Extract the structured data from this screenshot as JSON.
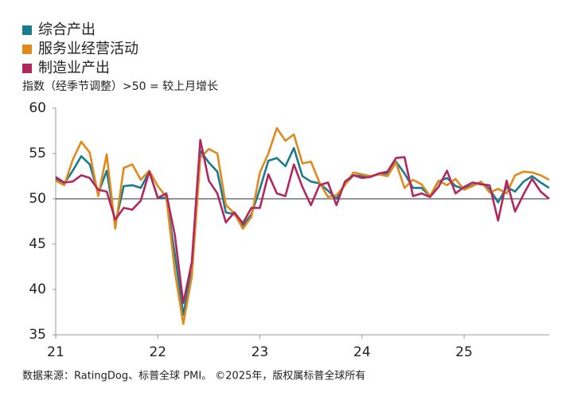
{
  "chart_data": {
    "type": "line",
    "subtitle": "指数（经季节调整）>50 = 较上月增长",
    "source": "数据来源：RatingDog、标普全球 PMI。 ©2025年，版权属标普全球所有",
    "categories": [
      "21",
      null,
      null,
      null,
      null,
      null,
      null,
      null,
      null,
      null,
      null,
      null,
      "22",
      null,
      null,
      null,
      null,
      null,
      null,
      null,
      null,
      null,
      null,
      null,
      "23",
      null,
      null,
      null,
      null,
      null,
      null,
      null,
      null,
      null,
      null,
      null,
      "24",
      null,
      null,
      null,
      null,
      null,
      null,
      null,
      null,
      null,
      null,
      null,
      "25",
      null,
      null,
      null,
      null,
      null,
      null,
      null,
      null,
      null,
      null
    ],
    "series": [
      {
        "name": "综合产出",
        "color": "#1b7b8e",
        "values": [
          52.2,
          51.7,
          53.1,
          54.7,
          53.8,
          50.6,
          53.1,
          47.2,
          51.4,
          51.5,
          51.2,
          53.0,
          50.1,
          50.1,
          43.9,
          37.2,
          42.2,
          55.3,
          54.0,
          53.0,
          48.5,
          48.3,
          47.0,
          48.3,
          51.1,
          54.2,
          54.5,
          53.6,
          55.6,
          52.5,
          51.9,
          51.7,
          50.9,
          50.0,
          51.6,
          52.6,
          52.5,
          52.5,
          52.7,
          52.8,
          54.1,
          52.8,
          51.2,
          51.2,
          50.3,
          51.9,
          52.3,
          51.4,
          51.1,
          51.5,
          51.8,
          51.1,
          49.6,
          51.3,
          50.8,
          51.9,
          52.5,
          51.8,
          51.2
        ]
      },
      {
        "name": "服务业经营活动",
        "color": "#e0891c",
        "values": [
          52.0,
          51.5,
          54.3,
          56.3,
          55.1,
          50.3,
          54.9,
          46.7,
          53.4,
          53.8,
          52.1,
          53.1,
          51.4,
          50.2,
          42.0,
          36.2,
          41.4,
          54.5,
          55.5,
          55.0,
          49.3,
          48.4,
          46.7,
          48.0,
          52.9,
          55.0,
          57.8,
          56.4,
          57.1,
          53.9,
          54.1,
          51.8,
          50.2,
          50.4,
          51.5,
          52.9,
          52.7,
          52.5,
          52.7,
          52.5,
          54.0,
          51.2,
          52.1,
          51.6,
          50.3,
          52.0,
          51.5,
          52.2,
          51.0,
          51.4,
          51.9,
          50.7,
          51.1,
          50.6,
          52.6,
          53.0,
          52.9,
          52.6,
          52.1
        ]
      },
      {
        "name": "制造业产出",
        "color": "#b3275f",
        "values": [
          52.4,
          51.8,
          51.9,
          52.6,
          52.3,
          51.0,
          50.8,
          47.7,
          49.0,
          48.8,
          49.8,
          53.0,
          50.1,
          50.6,
          46.0,
          38.5,
          43.0,
          56.5,
          52.0,
          50.6,
          47.4,
          48.5,
          47.3,
          49.0,
          49.0,
          52.7,
          50.6,
          50.3,
          53.8,
          51.3,
          49.3,
          51.5,
          51.8,
          49.3,
          51.9,
          52.6,
          52.3,
          52.4,
          52.8,
          53.0,
          54.5,
          54.6,
          50.3,
          50.6,
          50.2,
          51.3,
          53.1,
          50.6,
          51.3,
          51.8,
          51.6,
          51.5,
          47.6,
          52.0,
          48.6,
          50.5,
          52.2,
          50.8,
          50.0
        ]
      }
    ],
    "ylim": [
      35,
      60
    ],
    "yticks": [
      35,
      40,
      45,
      50,
      55,
      60
    ],
    "reference_line": 50
  }
}
